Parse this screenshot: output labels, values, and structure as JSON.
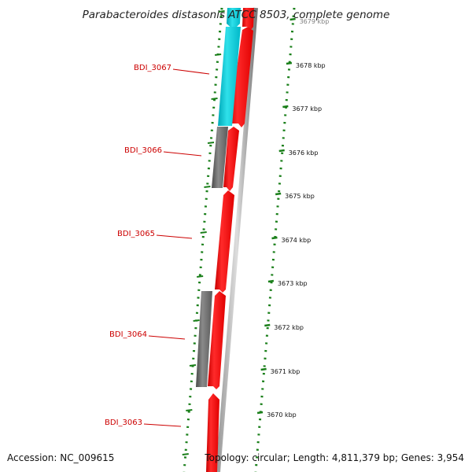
{
  "title": "Parabacteroides distasonis ATCC 8503, complete genome",
  "accession": "Accession: NC_009615",
  "summary": "Topology: circular; Length: 4,811,379 bp; Genes: 3,954",
  "colors": {
    "forward_gene": "#ff0000",
    "reverse_gene": "#00c8d2",
    "reverse_gene_other": "#707070",
    "tick": "#1a7f1a",
    "backbone": "#8a8a8a",
    "label": "#cc0000"
  },
  "gene_labels": [
    "BDI_3067",
    "BDI_3066",
    "BDI_3065",
    "BDI_3064",
    "BDI_3063"
  ],
  "kbp_ticks": [
    "3679 kbp",
    "3678 kbp",
    "3677 kbp",
    "3676 kbp",
    "3675 kbp",
    "3674 kbp",
    "3673 kbp",
    "3672 kbp",
    "3671 kbp",
    "3670 kbp"
  ]
}
